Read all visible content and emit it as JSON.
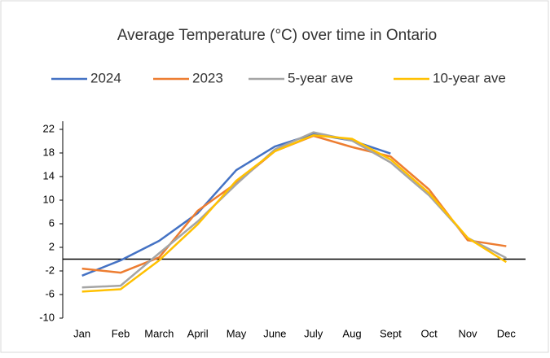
{
  "chart_data": {
    "type": "line",
    "title": "Average Temperature (°C) over time in Ontario",
    "categories": [
      "Jan",
      "Feb",
      "March",
      "April",
      "May",
      "June",
      "July",
      "Aug",
      "Sept",
      "Oct",
      "Nov",
      "Dec"
    ],
    "series": [
      {
        "name": "2024",
        "color": "#4472c4",
        "values": [
          -2.8,
          -0.2,
          3.1,
          7.8,
          15.1,
          19.1,
          21.2,
          20.1,
          17.9,
          null,
          null,
          null
        ]
      },
      {
        "name": "2023",
        "color": "#ed7d31",
        "values": [
          -1.6,
          -2.3,
          0.3,
          8.2,
          12.9,
          18.3,
          20.9,
          19.0,
          17.4,
          11.8,
          3.2,
          2.2
        ]
      },
      {
        "name": "5-year ave",
        "color": "#a5a5a5",
        "values": [
          -4.8,
          -4.5,
          1.0,
          6.4,
          12.7,
          18.6,
          21.5,
          20.1,
          16.4,
          10.8,
          3.6,
          0.2
        ]
      },
      {
        "name": "10-year ave",
        "color": "#ffc000",
        "values": [
          -5.5,
          -5.1,
          -0.2,
          5.9,
          13.3,
          18.3,
          21.0,
          20.4,
          16.9,
          11.2,
          3.6,
          -0.5
        ]
      }
    ],
    "ylim": [
      -10,
      22
    ],
    "yticks": [
      -10,
      -6,
      -2,
      2,
      6,
      10,
      14,
      18,
      22
    ]
  }
}
